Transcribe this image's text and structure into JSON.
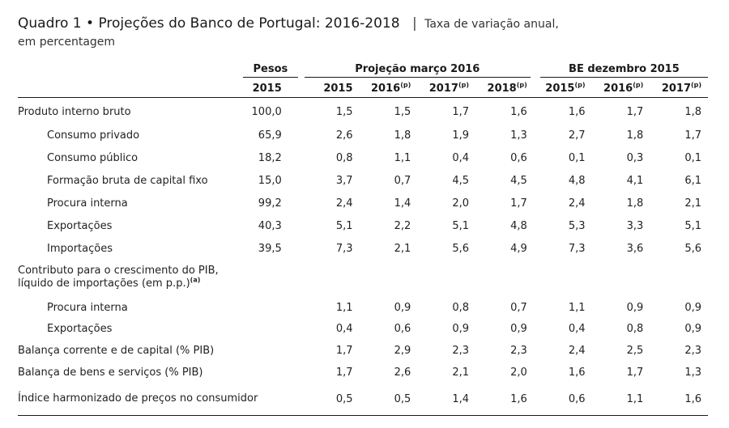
{
  "title": {
    "label": "Quadro 1",
    "bullet": "•",
    "main": "Projeções do Banco de Portugal: 2016-2018",
    "separator": "|",
    "subtitle": "Taxa de variação anual,",
    "subtitle2": "em percentagem"
  },
  "header": {
    "group_pesos": "Pesos",
    "group_proj": "Projeção março 2016",
    "group_be": "BE dezembro 2015",
    "pesos_year": "2015",
    "proj_years": [
      {
        "year": "2015",
        "sup": ""
      },
      {
        "year": "2016",
        "sup": "(p)"
      },
      {
        "year": "2017",
        "sup": "(p)"
      },
      {
        "year": "2018",
        "sup": "(p)"
      }
    ],
    "be_years": [
      {
        "year": "2015",
        "sup": "(p)"
      },
      {
        "year": "2016",
        "sup": "(p)"
      },
      {
        "year": "2017",
        "sup": "(p)"
      }
    ]
  },
  "rows": [
    {
      "label": "Produto interno bruto",
      "pesos": "100,0",
      "proj": [
        "1,5",
        "1,5",
        "1,7",
        "1,6"
      ],
      "be": [
        "1,6",
        "1,7",
        "1,8"
      ]
    },
    {
      "label": "Consumo privado",
      "pesos": "65,9",
      "proj": [
        "2,6",
        "1,8",
        "1,9",
        "1,3"
      ],
      "be": [
        "2,7",
        "1,8",
        "1,7"
      ]
    },
    {
      "label": "Consumo público",
      "pesos": "18,2",
      "proj": [
        "0,8",
        "1,1",
        "0,4",
        "0,6"
      ],
      "be": [
        "0,1",
        "0,3",
        "0,1"
      ]
    },
    {
      "label": "Formação bruta de capital fixo",
      "pesos": "15,0",
      "proj": [
        "3,7",
        "0,7",
        "4,5",
        "4,5"
      ],
      "be": [
        "4,8",
        "4,1",
        "6,1"
      ]
    },
    {
      "label": "Procura interna",
      "pesos": "99,2",
      "proj": [
        "2,4",
        "1,4",
        "2,0",
        "1,7"
      ],
      "be": [
        "2,4",
        "1,8",
        "2,1"
      ]
    },
    {
      "label": "Exportações",
      "pesos": "40,3",
      "proj": [
        "5,1",
        "2,2",
        "5,1",
        "4,8"
      ],
      "be": [
        "5,3",
        "3,3",
        "5,1"
      ]
    },
    {
      "label": "Importações",
      "pesos": "39,5",
      "proj": [
        "7,3",
        "2,1",
        "5,6",
        "4,9"
      ],
      "be": [
        "7,3",
        "3,6",
        "5,6"
      ]
    }
  ],
  "contrib": {
    "line1": "Contributo para o crescimento do PIB,",
    "line2": "líquido de importações (em p.p.)",
    "sup": "(a)",
    "rows": [
      {
        "label": "Procura interna",
        "proj": [
          "1,1",
          "0,9",
          "0,8",
          "0,7"
        ],
        "be": [
          "1,1",
          "0,9",
          "0,9"
        ]
      },
      {
        "label": "Exportações",
        "proj": [
          "0,4",
          "0,6",
          "0,9",
          "0,9"
        ],
        "be": [
          "0,4",
          "0,8",
          "0,9"
        ]
      }
    ]
  },
  "tail_rows": [
    {
      "label": "Balança corrente e de capital (% PIB)",
      "proj": [
        "1,7",
        "2,9",
        "2,3",
        "2,3"
      ],
      "be": [
        "2,4",
        "2,5",
        "2,3"
      ]
    },
    {
      "label": "Balança de bens e serviços (% PIB)",
      "proj": [
        "1,7",
        "2,6",
        "2,1",
        "2,0"
      ],
      "be": [
        "1,6",
        "1,7",
        "1,3"
      ]
    },
    {
      "label": "Índice  harmonizado de preços no consumidor",
      "proj": [
        "0,5",
        "0,5",
        "1,4",
        "1,6"
      ],
      "be": [
        "0,6",
        "1,1",
        "1,6"
      ]
    }
  ]
}
